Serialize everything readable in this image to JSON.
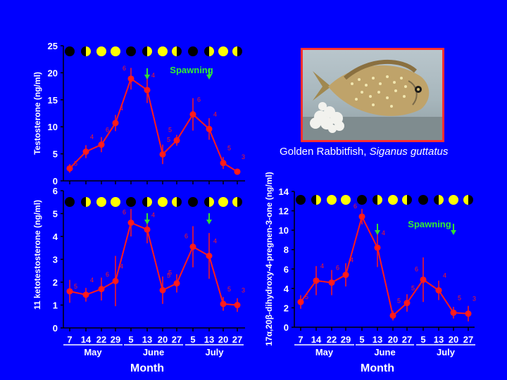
{
  "caption": {
    "common": "Golden Rabbitfish, ",
    "species": "Siganus guttatus"
  },
  "photo": {
    "subject": "fish-photo"
  },
  "colors": {
    "background": "#0000ff",
    "series": "#ff1a1a",
    "arrow": "#33dd33",
    "axis": "#000000",
    "text": "#ffffff",
    "spawning": "#33ee33"
  },
  "chart_data": [
    {
      "type": "line",
      "ylabel": "Testosterone (ng/ml)",
      "ylim": [
        0,
        25
      ],
      "yticks": [
        0,
        5,
        10,
        15,
        20,
        25
      ],
      "xticks": [
        "7",
        "14",
        "22",
        "29",
        "5",
        "13",
        "20",
        "27",
        "5",
        "13",
        "20",
        "27"
      ],
      "months": [
        "May",
        "June",
        "July"
      ],
      "xlabel": "Month",
      "annotation": "Spawning",
      "moon_phases": [
        "new",
        "first",
        "full",
        "full",
        "new",
        "first",
        "full",
        "last",
        "new",
        "first",
        "full",
        "last"
      ],
      "spawning_arrows": [
        5,
        9
      ],
      "series": [
        {
          "values": [
            2.3,
            5.4,
            6.7,
            10.7,
            18.9,
            16.8,
            4.9,
            7.5,
            12.3,
            9.6,
            3.3,
            1.7
          ],
          "errors": [
            0.8,
            1.2,
            1.4,
            1.5,
            2.0,
            2.4,
            1.8,
            1.0,
            3.0,
            2.0,
            1.1,
            0.5
          ],
          "n": [
            "5",
            "4",
            "6",
            "4",
            "6",
            "4",
            "5",
            "5",
            "6",
            "4",
            "5",
            "3"
          ]
        }
      ]
    },
    {
      "type": "line",
      "ylabel": "11 ketotestosterone (ng/ml)",
      "ylim": [
        0,
        6
      ],
      "yticks": [
        0,
        1,
        2,
        3,
        4,
        5,
        6
      ],
      "xticks": [
        "7",
        "14",
        "22",
        "29",
        "5",
        "13",
        "20",
        "27",
        "5",
        "13",
        "20",
        "27"
      ],
      "months": [
        "May",
        "June",
        "July"
      ],
      "xlabel": "Month",
      "moon_phases": [
        "new",
        "first",
        "full",
        "full",
        "new",
        "first",
        "full",
        "last",
        "new",
        "first",
        "full",
        "last"
      ],
      "spawning_arrows": [
        5,
        9
      ],
      "series": [
        {
          "values": [
            1.6,
            1.45,
            1.7,
            2.05,
            4.6,
            4.3,
            1.65,
            1.95,
            3.55,
            3.15,
            1.05,
            1.0
          ],
          "errors": [
            0.5,
            0.3,
            0.5,
            1.1,
            0.6,
            0.6,
            0.6,
            0.4,
            0.9,
            1.0,
            0.3,
            0.3
          ],
          "n": [
            "5",
            "4",
            "6",
            "4",
            "6",
            "4",
            "5",
            "5",
            "6",
            "4",
            "5",
            "3"
          ]
        }
      ]
    },
    {
      "type": "line",
      "ylabel": "17α,20β-dihydroxy-4-pregnen-3-one (ng/ml)",
      "ylim": [
        0,
        14
      ],
      "yticks": [
        0,
        2,
        4,
        6,
        8,
        10,
        12,
        14
      ],
      "xticks": [
        "7",
        "14",
        "22",
        "29",
        "5",
        "13",
        "20",
        "27",
        "5",
        "13",
        "20",
        "27"
      ],
      "months": [
        "May",
        "June",
        "July"
      ],
      "xlabel": "Month",
      "annotation": "Spawning",
      "moon_phases": [
        "new",
        "first",
        "full",
        "full",
        "new",
        "first",
        "full",
        "last",
        "new",
        "first",
        "full",
        "last"
      ],
      "spawning_arrows": [
        5,
        10
      ],
      "series": [
        {
          "values": [
            2.6,
            4.8,
            4.6,
            5.4,
            11.4,
            8.2,
            1.2,
            2.5,
            4.9,
            3.8,
            1.5,
            1.4
          ],
          "errors": [
            0.7,
            1.5,
            1.3,
            1.2,
            0.8,
            2.0,
            0.5,
            0.9,
            2.3,
            1.0,
            0.6,
            0.8
          ],
          "n": [
            "5",
            "4",
            "6",
            "4",
            "6",
            "4",
            "5",
            "5",
            "6",
            "4",
            "5",
            "3"
          ]
        }
      ]
    }
  ]
}
